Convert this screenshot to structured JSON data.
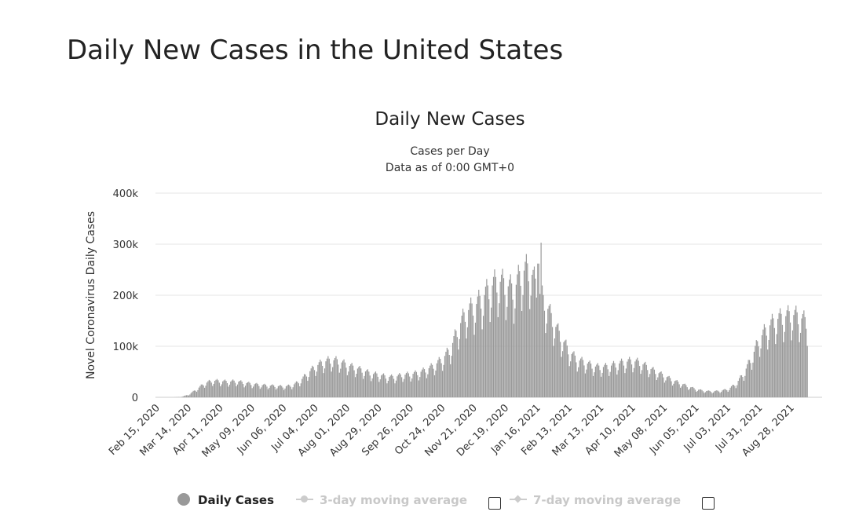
{
  "page": {
    "title": "Daily New Cases in the United States"
  },
  "chart_data": {
    "type": "bar",
    "title": "Daily New Cases",
    "subtitle_lines": [
      "Cases per Day",
      "Data as of 0:00 GMT+0"
    ],
    "ylabel": "Novel Coronavirus Daily Cases",
    "xlabel": "",
    "ylim": [
      0,
      400000
    ],
    "y_ticks": [
      0,
      100000,
      200000,
      300000,
      400000
    ],
    "y_tick_labels": [
      "0",
      "100k",
      "200k",
      "300k",
      "400k"
    ],
    "grid": true,
    "legend_position": "bottom",
    "x_tick_labels": [
      "Feb 15, 2020",
      "Mar 14, 2020",
      "Apr 11, 2020",
      "May 09, 2020",
      "Jun 06, 2020",
      "Jul 04, 2020",
      "Aug 01, 2020",
      "Aug 29, 2020",
      "Sep 26, 2020",
      "Oct 24, 2020",
      "Nov 21, 2020",
      "Dec 19, 2020",
      "Jan 16, 2021",
      "Feb 13, 2021",
      "Mar 13, 2021",
      "Apr 10, 2021",
      "May 08, 2021",
      "Jun 05, 2021",
      "Jul 03, 2021",
      "Jul 31, 2021",
      "Aug 28, 2021"
    ],
    "x_start_date": "2020-02-15",
    "weekly_estimates": {
      "week_start_dates": [
        "2020-02-15",
        "2020-02-22",
        "2020-02-29",
        "2020-03-07",
        "2020-03-14",
        "2020-03-21",
        "2020-03-28",
        "2020-04-04",
        "2020-04-11",
        "2020-04-18",
        "2020-04-25",
        "2020-05-02",
        "2020-05-09",
        "2020-05-16",
        "2020-05-23",
        "2020-05-30",
        "2020-06-06",
        "2020-06-13",
        "2020-06-20",
        "2020-06-27",
        "2020-07-04",
        "2020-07-11",
        "2020-07-18",
        "2020-07-25",
        "2020-08-01",
        "2020-08-08",
        "2020-08-15",
        "2020-08-22",
        "2020-08-29",
        "2020-09-05",
        "2020-09-12",
        "2020-09-19",
        "2020-09-26",
        "2020-10-03",
        "2020-10-10",
        "2020-10-17",
        "2020-10-24",
        "2020-10-31",
        "2020-11-07",
        "2020-11-14",
        "2020-11-21",
        "2020-11-28",
        "2020-12-05",
        "2020-12-12",
        "2020-12-19",
        "2020-12-26",
        "2021-01-02",
        "2021-01-09",
        "2021-01-16",
        "2021-01-23",
        "2021-01-30",
        "2021-02-06",
        "2021-02-13",
        "2021-02-20",
        "2021-02-27",
        "2021-03-06",
        "2021-03-13",
        "2021-03-20",
        "2021-03-27",
        "2021-04-03",
        "2021-04-10",
        "2021-04-17",
        "2021-04-24",
        "2021-05-01",
        "2021-05-08",
        "2021-05-15",
        "2021-05-22",
        "2021-05-29",
        "2021-06-05",
        "2021-06-12",
        "2021-06-19",
        "2021-06-26",
        "2021-07-03",
        "2021-07-10",
        "2021-07-17",
        "2021-07-24",
        "2021-07-31",
        "2021-08-07",
        "2021-08-14",
        "2021-08-21",
        "2021-08-28",
        "2021-09-04",
        "2021-09-11"
      ],
      "daily_cases_typical": [
        0,
        0,
        0,
        500,
        5000,
        15000,
        26000,
        31000,
        30000,
        29000,
        30000,
        27000,
        25000,
        23000,
        22000,
        21000,
        20000,
        22000,
        30000,
        45000,
        58000,
        66000,
        70000,
        67000,
        60000,
        55000,
        50000,
        44000,
        42000,
        38000,
        38000,
        42000,
        43000,
        46000,
        52000,
        60000,
        72000,
        90000,
        130000,
        160000,
        170000,
        185000,
        205000,
        218000,
        210000,
        200000,
        235000,
        240000,
        200000,
        175000,
        140000,
        110000,
        85000,
        70000,
        65000,
        58000,
        56000,
        58000,
        62000,
        66000,
        68000,
        64000,
        55000,
        47000,
        40000,
        32000,
        26000,
        20000,
        15000,
        12000,
        11000,
        12000,
        15000,
        25000,
        45000,
        75000,
        110000,
        130000,
        145000,
        150000,
        155000,
        150000,
        140000
      ]
    }
  },
  "legend": {
    "items": [
      {
        "label": "Daily Cases",
        "active": true
      },
      {
        "label": "3-day moving average",
        "active": false
      },
      {
        "label": "7-day moving average",
        "active": false
      }
    ]
  },
  "colors": {
    "bars": "#999999",
    "bar_edge": "#ffffff",
    "grid": "#e6e6e6",
    "inactive_legend": "#cccccc"
  }
}
